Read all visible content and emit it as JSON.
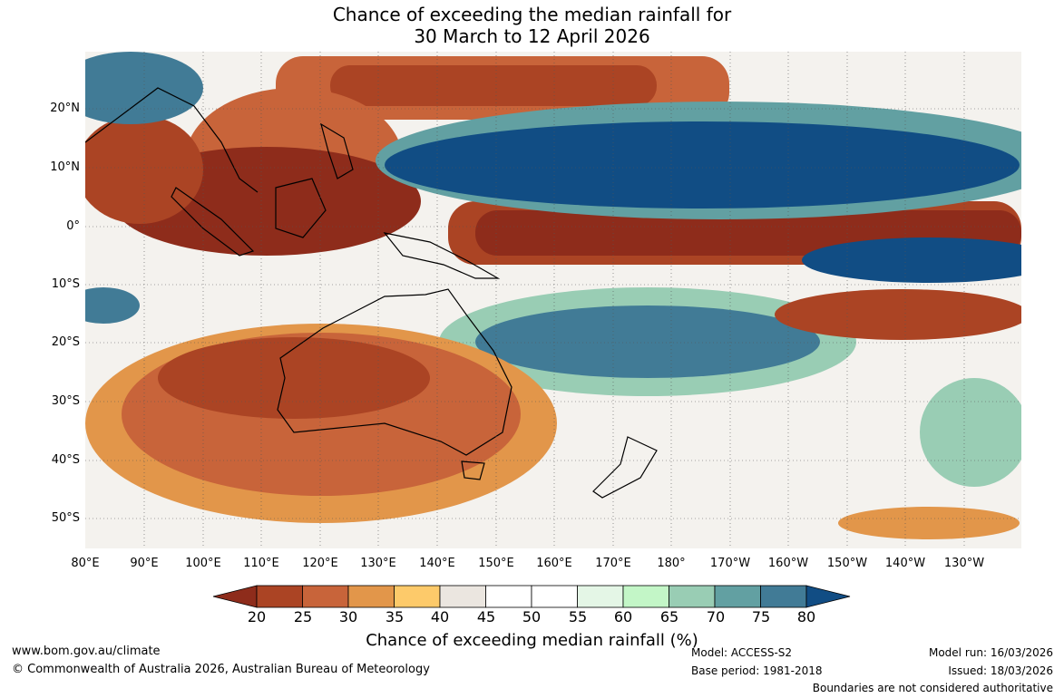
{
  "title": {
    "line1": "Chance of exceeding the median rainfall for",
    "line2": "30 March to 12 April 2026"
  },
  "map": {
    "lat_labels": [
      "20°N",
      "10°N",
      "0°",
      "10°S",
      "20°S",
      "30°S",
      "40°S",
      "50°S"
    ],
    "lon_labels": [
      "80°E",
      "90°E",
      "100°E",
      "110°E",
      "120°E",
      "130°E",
      "140°E",
      "150°E",
      "160°E",
      "170°E",
      "180°",
      "170°W",
      "160°W",
      "150°W",
      "140°W",
      "130°W"
    ]
  },
  "colorbar": {
    "ticks": [
      "20",
      "25",
      "30",
      "35",
      "40",
      "45",
      "50",
      "55",
      "60",
      "65",
      "70",
      "75",
      "80"
    ],
    "colors": [
      "#8e2c1b",
      "#ab4424",
      "#c8643a",
      "#e2964a",
      "#fdca6a",
      "#ebe6e0",
      "#ffffff",
      "#ffffff",
      "#e4f6e6",
      "#c3f6c7",
      "#99cdb4",
      "#62a0a2",
      "#417b96",
      "#114d84"
    ],
    "title": "Chance of exceeding median rainfall (%)"
  },
  "footer": {
    "website": "www.bom.gov.au/climate",
    "copyright": "© Commonwealth of Australia 2026, Australian Bureau of Meteorology",
    "model": "Model: ACCESS-S2",
    "base_period": "Base period: 1981-2018",
    "model_run": "Model run: 16/03/2026",
    "issued": "Issued: 18/03/2026",
    "disclaimer": "Boundaries are not considered authoritative"
  }
}
